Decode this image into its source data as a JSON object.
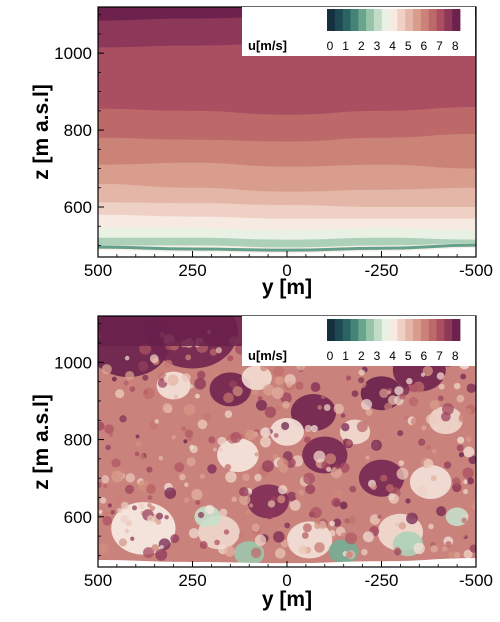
{
  "chart_data": [
    {
      "type": "heatmap",
      "panel": "top",
      "description_kind": "mean-like layered field",
      "xlabel": "y [m]",
      "ylabel": "z [m a.s.l]",
      "xticks": [
        "500",
        "250",
        "0",
        "-250",
        "-500"
      ],
      "yticks": [
        "600",
        "800",
        "1000"
      ],
      "xlim": [
        500,
        -500
      ],
      "ylim": [
        470,
        1120
      ],
      "colorbar": {
        "label": "u[m/s]",
        "ticks": [
          "0",
          "1",
          "2",
          "3",
          "4",
          "5",
          "6",
          "7",
          "8"
        ],
        "range": [
          0,
          8.5
        ]
      },
      "iso_levels": [
        {
          "u": 8.25,
          "z_at_y": [
            [
              500,
              1085
            ],
            [
              250,
              1090
            ],
            [
              0,
              1095
            ],
            [
              -250,
              1095
            ],
            [
              -500,
              1090
            ]
          ]
        },
        {
          "u": 7.75,
          "z_at_y": [
            [
              500,
              1015
            ],
            [
              250,
              1020
            ],
            [
              0,
              1025
            ],
            [
              -250,
              1020
            ],
            [
              -500,
              1010
            ]
          ]
        },
        {
          "u": 7.25,
          "z_at_y": [
            [
              500,
              855
            ],
            [
              250,
              850
            ],
            [
              0,
              840
            ],
            [
              -250,
              850
            ],
            [
              -500,
              860
            ]
          ]
        },
        {
          "u": 6.75,
          "z_at_y": [
            [
              500,
              780
            ],
            [
              250,
              775
            ],
            [
              0,
              770
            ],
            [
              -250,
              780
            ],
            [
              -500,
              790
            ]
          ]
        },
        {
          "u": 6.25,
          "z_at_y": [
            [
              500,
              710
            ],
            [
              250,
              715
            ],
            [
              0,
              705
            ],
            [
              -250,
              710
            ],
            [
              -500,
              700
            ]
          ]
        },
        {
          "u": 5.75,
          "z_at_y": [
            [
              500,
              660
            ],
            [
              250,
              650
            ],
            [
              0,
              640
            ],
            [
              -250,
              645
            ],
            [
              -500,
              650
            ]
          ]
        },
        {
          "u": 5.25,
          "z_at_y": [
            [
              500,
              612
            ],
            [
              250,
              610
            ],
            [
              0,
              605
            ],
            [
              -250,
              600
            ],
            [
              -500,
              600
            ]
          ]
        },
        {
          "u": 4.75,
          "z_at_y": [
            [
              500,
              580
            ],
            [
              250,
              575
            ],
            [
              0,
              570
            ],
            [
              -250,
              570
            ],
            [
              -500,
              570
            ]
          ]
        },
        {
          "u": 4.25,
          "z_at_y": [
            [
              500,
              545
            ],
            [
              250,
              545
            ],
            [
              0,
              540
            ],
            [
              -250,
              545
            ],
            [
              -500,
              540
            ]
          ]
        },
        {
          "u": 3.75,
          "z_at_y": [
            [
              500,
              520
            ],
            [
              250,
              520
            ],
            [
              0,
              515
            ],
            [
              -250,
              520
            ],
            [
              -500,
              515
            ]
          ]
        },
        {
          "u": 3.0,
          "z_at_y": [
            [
              500,
              500
            ],
            [
              250,
              500
            ],
            [
              0,
              495
            ],
            [
              -250,
              500
            ],
            [
              -500,
              505
            ]
          ]
        }
      ],
      "terrain_z_at_y": [
        [
          500,
          488
        ],
        [
          250,
          483
        ],
        [
          0,
          480
        ],
        [
          -250,
          485
        ],
        [
          -500,
          493
        ]
      ]
    },
    {
      "type": "heatmap",
      "panel": "bottom",
      "description_kind": "turbulent instantaneous field",
      "xlabel": "y [m]",
      "ylabel": "z [m a.s.l]",
      "xticks": [
        "500",
        "250",
        "0",
        "-250",
        "-500"
      ],
      "yticks": [
        "600",
        "800",
        "1000"
      ],
      "xlim": [
        500,
        -500
      ],
      "ylim": [
        470,
        1120
      ],
      "colorbar": {
        "label": "u[m/s]",
        "ticks": [
          "0",
          "1",
          "2",
          "3",
          "4",
          "5",
          "6",
          "7",
          "8"
        ],
        "range": [
          0,
          8.5
        ]
      },
      "blobs": [
        {
          "y": 420,
          "z": 1050,
          "u": 8.3,
          "r": 110
        },
        {
          "y": 250,
          "z": 1080,
          "u": 8.2,
          "r": 120
        },
        {
          "y": 150,
          "z": 930,
          "u": 8.2,
          "r": 55
        },
        {
          "y": -70,
          "z": 870,
          "u": 8.2,
          "r": 60
        },
        {
          "y": -250,
          "z": 920,
          "u": 8.3,
          "r": 55
        },
        {
          "y": -350,
          "z": 980,
          "u": 8.2,
          "r": 70
        },
        {
          "y": -100,
          "z": 760,
          "u": 8.1,
          "r": 60
        },
        {
          "y": 50,
          "z": 640,
          "u": 8.0,
          "r": 55
        },
        {
          "y": -250,
          "z": 700,
          "u": 8.1,
          "r": 60
        },
        {
          "y": 300,
          "z": 940,
          "u": 4.4,
          "r": 45
        },
        {
          "y": 80,
          "z": 960,
          "u": 4.5,
          "r": 40
        },
        {
          "y": 130,
          "z": 760,
          "u": 4.3,
          "r": 55
        },
        {
          "y": 0,
          "z": 820,
          "u": 4.4,
          "r": 45
        },
        {
          "y": -180,
          "z": 820,
          "u": 4.5,
          "r": 40
        },
        {
          "y": -380,
          "z": 690,
          "u": 4.4,
          "r": 55
        },
        {
          "y": -420,
          "z": 850,
          "u": 4.6,
          "r": 45
        },
        {
          "y": 380,
          "z": 570,
          "u": 4.2,
          "r": 85
        },
        {
          "y": 180,
          "z": 560,
          "u": 4.6,
          "r": 55
        },
        {
          "y": -60,
          "z": 540,
          "u": 4.4,
          "r": 60
        },
        {
          "y": -300,
          "z": 560,
          "u": 4.5,
          "r": 60
        },
        {
          "y": 210,
          "z": 600,
          "u": 3.3,
          "r": 35
        },
        {
          "y": -150,
          "z": 510,
          "u": 2.4,
          "r": 40
        },
        {
          "y": -320,
          "z": 530,
          "u": 3.0,
          "r": 40
        },
        {
          "y": 100,
          "z": 505,
          "u": 2.8,
          "r": 40
        },
        {
          "y": -450,
          "z": 600,
          "u": 3.3,
          "r": 30
        }
      ],
      "terrain_z_at_y": [
        [
          500,
          488
        ],
        [
          250,
          483
        ],
        [
          0,
          480
        ],
        [
          -250,
          485
        ],
        [
          -500,
          493
        ]
      ]
    }
  ]
}
